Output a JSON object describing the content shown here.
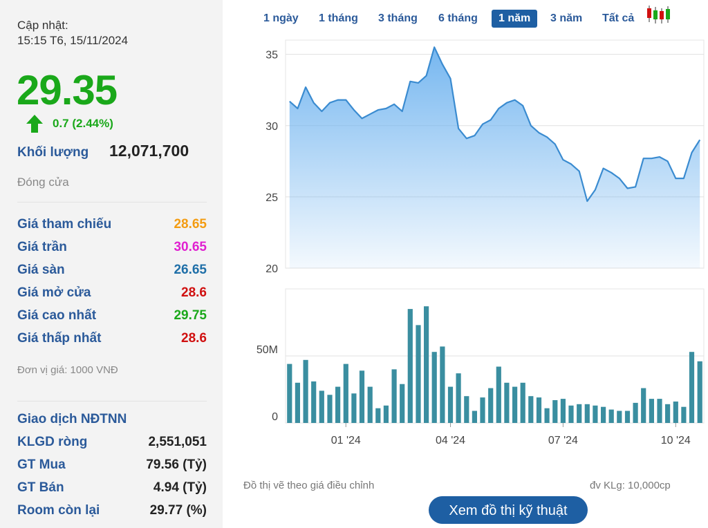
{
  "summary": {
    "updated_label": "Cập nhật:",
    "updated_time": "15:15 T6, 15/11/2024",
    "price": "29.35",
    "change": "0.7 (2.44%)",
    "volume_label": "Khối lượng",
    "volume_value": "12,071,700",
    "status": "Đóng cửa",
    "unit_note": "Đơn vị giá: 1000 VNĐ",
    "price_rows": [
      {
        "label": "Giá tham chiếu",
        "value": "28.65",
        "color": "#f39c12"
      },
      {
        "label": "Giá trần",
        "value": "30.65",
        "color": "#e020d0"
      },
      {
        "label": "Giá sàn",
        "value": "26.65",
        "color": "#1f6fa8"
      },
      {
        "label": "Giá mở cửa",
        "value": "28.6",
        "color": "#d01010"
      },
      {
        "label": "Giá cao nhất",
        "value": "29.75",
        "color": "#1aa81a"
      },
      {
        "label": "Giá thấp nhất",
        "value": "28.6",
        "color": "#d01010"
      }
    ],
    "foreign_title": "Giao dịch NĐTNN",
    "foreign_rows": [
      {
        "label": "KLGD ròng",
        "value": "2,551,051"
      },
      {
        "label": "GT Mua",
        "value": "79.56 (Tỷ)"
      },
      {
        "label": "GT Bán",
        "value": "4.94 (Tỷ)"
      },
      {
        "label": "Room còn lại",
        "value": "29.77 (%)"
      }
    ]
  },
  "tabs": [
    {
      "label": "1 ngày",
      "active": false
    },
    {
      "label": "1 tháng",
      "active": false
    },
    {
      "label": "3 tháng",
      "active": false
    },
    {
      "label": "6 tháng",
      "active": false
    },
    {
      "label": "1 năm",
      "active": true
    },
    {
      "label": "3 năm",
      "active": false
    },
    {
      "label": "Tất cả",
      "active": false
    }
  ],
  "candlestick_icon": "candlestick-chart-icon",
  "footer": {
    "note": "Đồ thị vẽ theo giá điều chỉnh",
    "volume_unit": "đv KLg: 10,000cp",
    "button": "Xem đồ thị kỹ thuật"
  },
  "chart_data": [
    {
      "type": "area",
      "ylim": [
        20,
        36
      ],
      "yticks": [
        20,
        25,
        30,
        35
      ],
      "x_ticks": [
        "01 '24",
        "04 '24",
        "07 '24",
        "10 '24"
      ],
      "x_tick_index": [
        7,
        20,
        34,
        48
      ],
      "values": [
        31.7,
        31.2,
        32.7,
        31.6,
        31.0,
        31.6,
        31.8,
        31.8,
        31.1,
        30.5,
        30.8,
        31.1,
        31.2,
        31.5,
        31.0,
        33.1,
        33.0,
        33.5,
        35.5,
        34.3,
        33.3,
        29.8,
        29.1,
        29.3,
        30.1,
        30.4,
        31.2,
        31.6,
        31.8,
        31.4,
        30.0,
        29.5,
        29.2,
        28.7,
        27.6,
        27.3,
        26.8,
        24.7,
        25.5,
        27.0,
        26.7,
        26.3,
        25.6,
        25.7,
        27.7,
        27.7,
        27.8,
        27.5,
        26.3,
        26.3,
        28.1,
        29.0
      ],
      "line_color": "#3a8bd0",
      "fill_color": "#8fc6f4"
    },
    {
      "type": "bar",
      "ylim": [
        0,
        100
      ],
      "yticks": [
        0,
        50
      ],
      "ytick_labels": [
        "0",
        "50M"
      ],
      "values": [
        44,
        30,
        47,
        31,
        24,
        21,
        27,
        44,
        22,
        39,
        27,
        11,
        13,
        40,
        29,
        85,
        73,
        87,
        53,
        57,
        27,
        37,
        20,
        9,
        19,
        26,
        42,
        30,
        27,
        30,
        20,
        19,
        11,
        17,
        18,
        13,
        14,
        14,
        13,
        12,
        10,
        9,
        9,
        15,
        26,
        18,
        18,
        14,
        16,
        12,
        53,
        46
      ],
      "bar_color": "#3a8ea0"
    }
  ]
}
